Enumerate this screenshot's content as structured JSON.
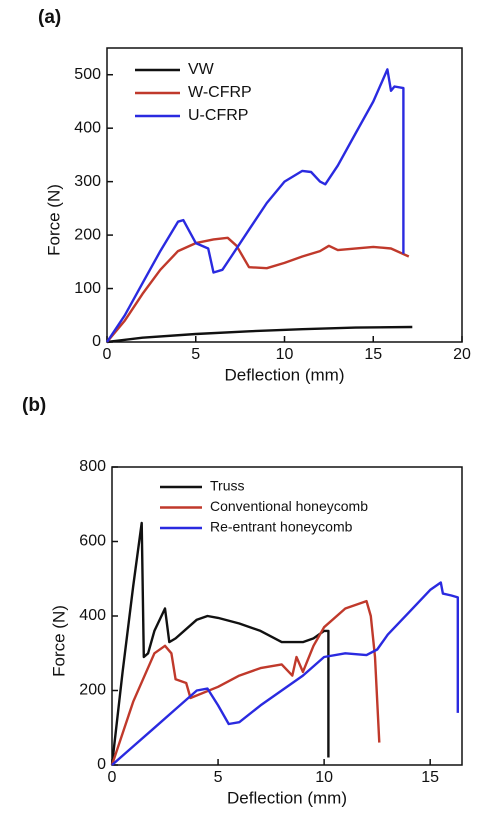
{
  "chart_data": [
    {
      "type": "line",
      "panel_label": "(a)",
      "xlabel": "Deflection (mm)",
      "ylabel": "Force (N)",
      "xlim": [
        0,
        20
      ],
      "xticks": [
        0,
        5,
        10,
        15,
        20
      ],
      "ylim": [
        0,
        550
      ],
      "yticks": [
        0,
        100,
        200,
        300,
        400,
        500
      ],
      "legend": "upper left",
      "series": [
        {
          "name": "VW",
          "color": "#111111",
          "x": [
            0,
            2,
            5,
            8,
            11,
            14,
            17.2
          ],
          "values": [
            0,
            8,
            15,
            20,
            24,
            27,
            28
          ]
        },
        {
          "name": "W-CFRP",
          "color": "#c0392b",
          "x": [
            0,
            1,
            2,
            3,
            4,
            5,
            6,
            6.8,
            7.3,
            8,
            9,
            10,
            11,
            12,
            12.5,
            13,
            15,
            16,
            17
          ],
          "values": [
            0,
            40,
            90,
            135,
            170,
            185,
            192,
            195,
            180,
            140,
            138,
            148,
            160,
            170,
            180,
            172,
            178,
            175,
            160
          ]
        },
        {
          "name": "U-CFRP",
          "color": "#2a2ae0",
          "x": [
            0,
            1,
            2,
            3,
            4,
            4.3,
            5,
            5.7,
            6,
            6.5,
            7,
            8,
            9,
            10,
            11,
            11.5,
            12,
            12.3,
            13,
            14,
            15,
            15.8,
            16,
            16.2,
            16.7,
            16.7
          ],
          "values": [
            0,
            50,
            110,
            170,
            225,
            228,
            185,
            175,
            130,
            135,
            160,
            210,
            260,
            300,
            320,
            318,
            300,
            295,
            330,
            390,
            450,
            510,
            470,
            478,
            475,
            165
          ]
        }
      ]
    },
    {
      "type": "line",
      "panel_label": "(b)",
      "xlabel": "Deflection (mm)",
      "ylabel": "Force (N)",
      "xlim": [
        0,
        16.5
      ],
      "xticks": [
        0,
        5,
        10,
        15
      ],
      "ylim": [
        0,
        800
      ],
      "yticks": [
        0,
        200,
        400,
        600,
        800
      ],
      "legend": "upper left",
      "series": [
        {
          "name": "Truss",
          "color": "#111111",
          "x": [
            0,
            0.5,
            1,
            1.4,
            1.5,
            1.7,
            2,
            2.5,
            2.7,
            3,
            4,
            4.5,
            5,
            6,
            7,
            8,
            9,
            9.5,
            10,
            10.2,
            10.2
          ],
          "values": [
            0,
            250,
            480,
            650,
            290,
            300,
            360,
            420,
            330,
            340,
            390,
            400,
            395,
            380,
            360,
            330,
            330,
            340,
            360,
            360,
            20
          ]
        },
        {
          "name": "Conventional honeycomb",
          "color": "#c0392b",
          "x": [
            0,
            1,
            2,
            2.5,
            2.8,
            3,
            3.5,
            3.7,
            5,
            6,
            7,
            8,
            8.5,
            8.7,
            9,
            9.5,
            10,
            11,
            12,
            12.2,
            12.4,
            12.6
          ],
          "values": [
            0,
            170,
            300,
            320,
            300,
            230,
            220,
            180,
            210,
            240,
            260,
            270,
            240,
            290,
            250,
            320,
            370,
            420,
            440,
            400,
            290,
            60
          ]
        },
        {
          "name": "Re-entrant honeycomb",
          "color": "#2a2ae0",
          "x": [
            0,
            1,
            2,
            3,
            4,
            4.5,
            5,
            5.5,
            6,
            7,
            8,
            9,
            10,
            11,
            12,
            12.5,
            13,
            14,
            15,
            15.5,
            15.6,
            16,
            16.3,
            16.3
          ],
          "values": [
            0,
            50,
            100,
            150,
            200,
            205,
            160,
            110,
            115,
            160,
            200,
            240,
            290,
            300,
            295,
            310,
            350,
            410,
            470,
            490,
            460,
            455,
            450,
            140
          ]
        }
      ]
    }
  ]
}
